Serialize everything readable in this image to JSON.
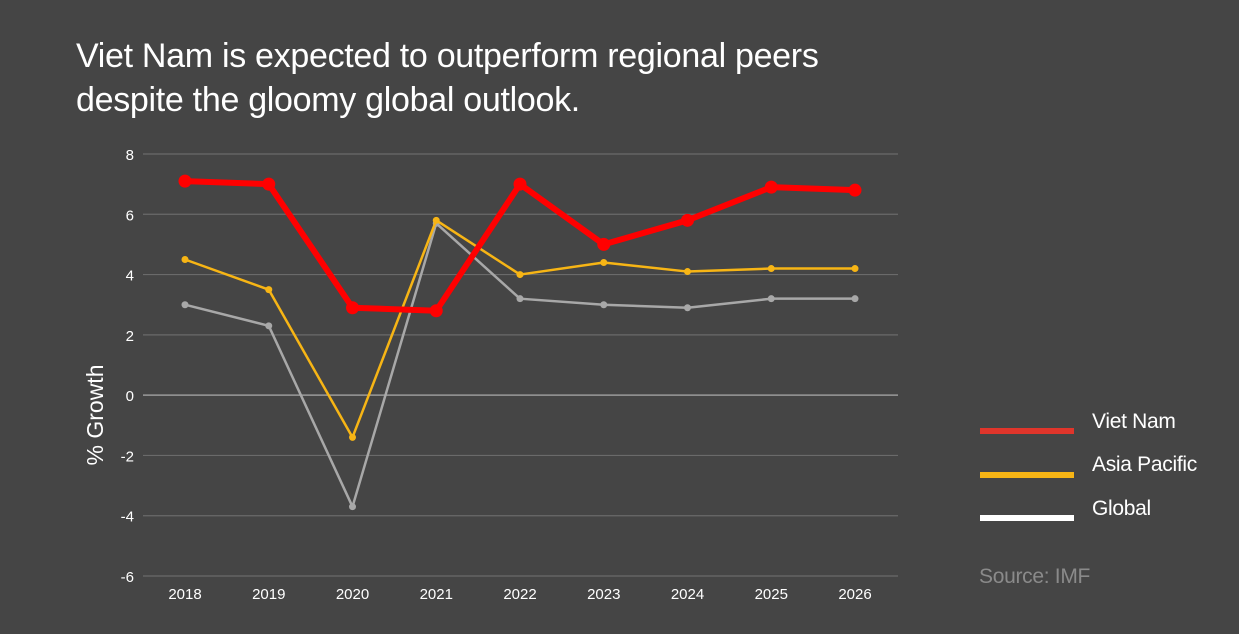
{
  "title_lines": [
    "Viet Nam is expected to outperform regional peers",
    "despite the gloomy global outlook."
  ],
  "source": "Source: IMF",
  "chart_data": {
    "type": "line",
    "title": "Viet Nam is expected to outperform regional peers despite the gloomy global outlook.",
    "xlabel": "",
    "ylabel": "% Growth",
    "x": [
      "2018",
      "2019",
      "2020",
      "2021",
      "2022",
      "2023",
      "2024",
      "2025",
      "2026"
    ],
    "ylim": [
      -6,
      8
    ],
    "yticks": [
      8,
      6,
      4,
      2,
      0,
      -2,
      -4,
      -6
    ],
    "ytick_labels": [
      "8",
      "6",
      "4",
      "2",
      "0",
      "-2",
      "-4",
      "-6"
    ],
    "grid": true,
    "legend_position": "right",
    "series": [
      {
        "name": "Viet Nam",
        "color": "#ff0000",
        "legend_color": "#e0352b",
        "values": [
          7.1,
          7.0,
          2.9,
          2.8,
          7.0,
          5.0,
          5.8,
          6.9,
          6.8
        ]
      },
      {
        "name": "Asia Pacific",
        "color": "#f7b515",
        "legend_color": "#f7b515",
        "values": [
          4.5,
          3.5,
          -1.4,
          5.8,
          4.0,
          4.4,
          4.1,
          4.2,
          4.2
        ]
      },
      {
        "name": "Global",
        "color": "#a8a8a8",
        "legend_color": "#ffffff",
        "values": [
          3.0,
          2.3,
          -3.7,
          5.7,
          3.2,
          3.0,
          2.9,
          3.2,
          3.2
        ]
      }
    ]
  }
}
